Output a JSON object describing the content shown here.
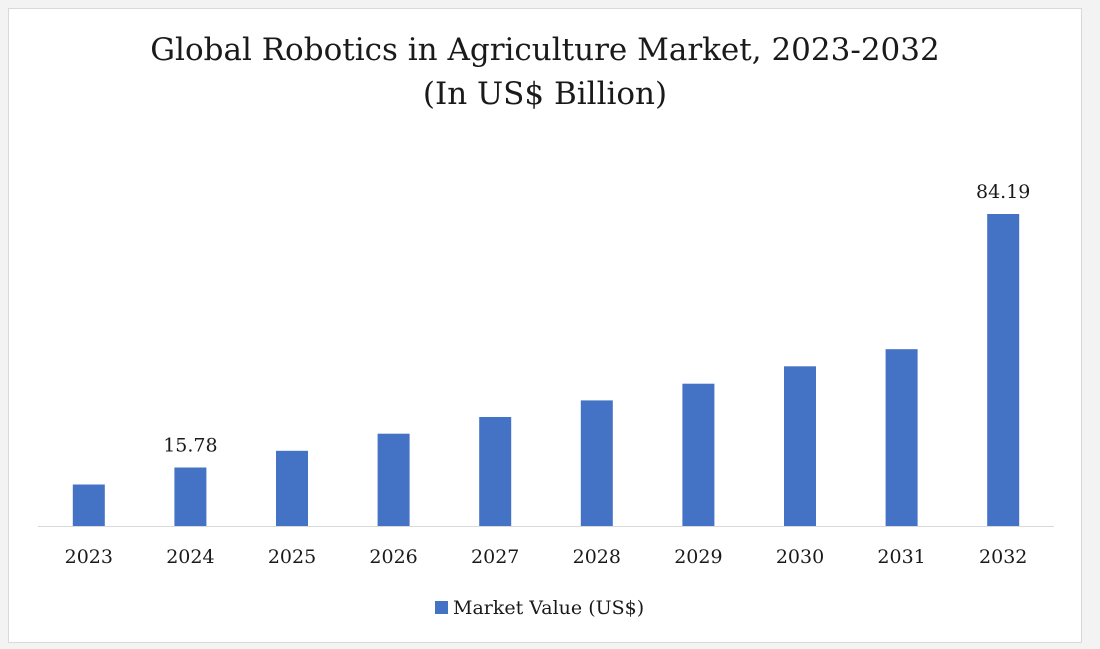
{
  "chart_data": {
    "type": "bar",
    "title": "Global Robotics in Agriculture Market, 2023-2032",
    "subtitle": "(In US$ Billion)",
    "categories": [
      "2023",
      "2024",
      "2025",
      "2026",
      "2027",
      "2028",
      "2029",
      "2030",
      "2031",
      "2032"
    ],
    "series": [
      {
        "name": "Market Value (US$)",
        "values": [
          11.2,
          15.78,
          20.3,
          24.9,
          29.4,
          33.9,
          38.4,
          43.1,
          47.7,
          84.19
        ],
        "color": "#4472c4"
      }
    ],
    "data_labels": [
      {
        "category": "2024",
        "text": "15.78"
      },
      {
        "category": "2032",
        "text": "84.19"
      }
    ],
    "ylim": [
      0,
      90
    ],
    "grid": false,
    "legend_position": "bottom",
    "xlabel": "",
    "ylabel": ""
  }
}
